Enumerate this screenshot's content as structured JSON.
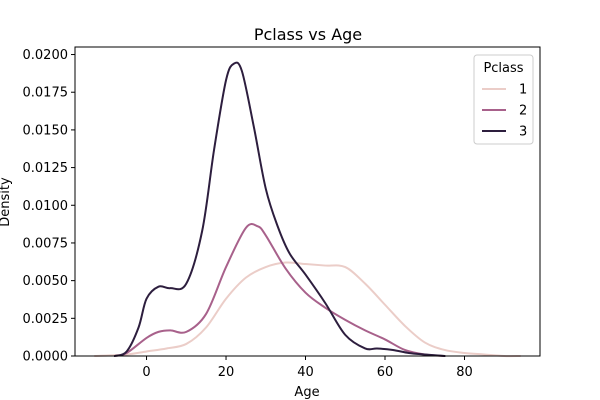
{
  "chart_data": {
    "type": "line",
    "title": "Pclass vs Age",
    "xlabel": "Age",
    "ylabel": "Density",
    "xlim": [
      -18,
      99
    ],
    "ylim": [
      0,
      0.0205
    ],
    "xticks": [
      0,
      20,
      40,
      60,
      80
    ],
    "xtick_labels": [
      "0",
      "20",
      "40",
      "60",
      "80"
    ],
    "yticks": [
      0,
      0.0025,
      0.005,
      0.0075,
      0.01,
      0.0125,
      0.015,
      0.0175,
      0.02
    ],
    "ytick_labels": [
      "0.0000",
      "0.0025",
      "0.0050",
      "0.0075",
      "0.0100",
      "0.0125",
      "0.0150",
      "0.0175",
      "0.0200"
    ],
    "grid": false,
    "legend": {
      "title": "Pclass",
      "position": "top-right"
    },
    "series": [
      {
        "name": "1",
        "color": "#ebcdc8",
        "x": [
          -13,
          -5,
          0,
          5,
          10,
          15,
          20,
          25,
          30,
          35,
          40,
          45,
          50,
          55,
          60,
          65,
          70,
          75,
          80,
          85,
          90,
          94
        ],
        "y": [
          0.0,
          0.0001,
          0.0003,
          0.0005,
          0.0008,
          0.0019,
          0.0038,
          0.0052,
          0.0059,
          0.0062,
          0.0061,
          0.006,
          0.0059,
          0.0048,
          0.0034,
          0.002,
          0.0009,
          0.0004,
          0.0002,
          0.0001,
          0.0,
          0.0
        ]
      },
      {
        "name": "2",
        "color": "#a8618b",
        "x": [
          -8,
          -5,
          0,
          3,
          6,
          10,
          15,
          20,
          25,
          28,
          30,
          35,
          40,
          45,
          50,
          55,
          60,
          65,
          70,
          75
        ],
        "y": [
          0.0,
          0.0002,
          0.0012,
          0.0016,
          0.0017,
          0.0016,
          0.0028,
          0.0059,
          0.0085,
          0.0086,
          0.008,
          0.0058,
          0.0042,
          0.0032,
          0.0024,
          0.0017,
          0.0011,
          0.0004,
          0.0001,
          0.0
        ]
      },
      {
        "name": "3",
        "color": "#2d1e3e",
        "x": [
          -8,
          -5,
          -2,
          0,
          3,
          6,
          10,
          14,
          17,
          20,
          22,
          24,
          27,
          30,
          33,
          36,
          40,
          45,
          50,
          55,
          58,
          62,
          66,
          70,
          75
        ],
        "y": [
          0.0,
          0.0003,
          0.0019,
          0.0038,
          0.0046,
          0.0045,
          0.0048,
          0.0083,
          0.0137,
          0.0183,
          0.0194,
          0.0189,
          0.0152,
          0.0111,
          0.0086,
          0.0068,
          0.0054,
          0.0035,
          0.0014,
          0.0005,
          0.0005,
          0.0004,
          0.0002,
          0.0001,
          0.0
        ]
      }
    ]
  }
}
